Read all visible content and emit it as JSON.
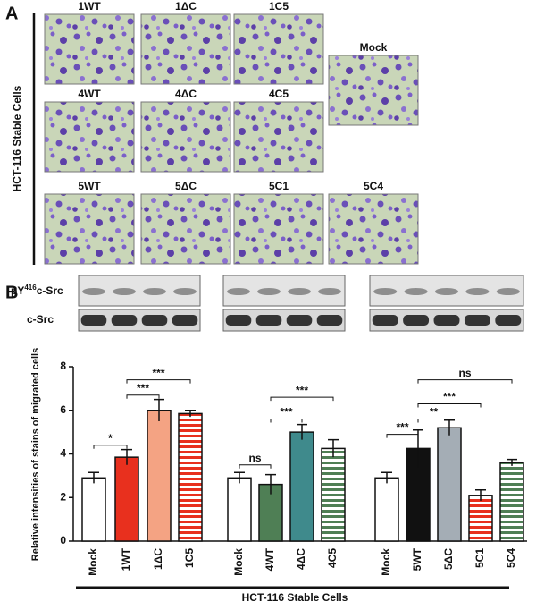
{
  "panel_a": {
    "label": "A",
    "side_label": "HCT-116 Stable Cells",
    "images": [
      "1WT",
      "1ΔC",
      "1C5",
      "Mock",
      "4WT",
      "4ΔC",
      "4C5",
      "5WT",
      "5ΔC",
      "5C1",
      "5C4"
    ]
  },
  "panel_b": {
    "label": "B",
    "blot_labels": [
      {
        "prefix": "pY",
        "sup": "416",
        "suffix": "c-Src"
      },
      "c-Src"
    ]
  },
  "chart_data": {
    "type": "bar",
    "y_label": "Relative intensities of stains of migrated cells",
    "x_label": "HCT-116 Stable Cells",
    "categories": [
      "Mock",
      "1WT",
      "1ΔC",
      "1C5",
      "Mock",
      "4WT",
      "4ΔC",
      "4C5",
      "Mock",
      "5WT",
      "5ΔC",
      "5C1",
      "5C4"
    ],
    "series": [
      {
        "values": [
          2.9,
          3.85,
          6.0,
          5.85,
          2.9,
          2.6,
          5.0,
          4.25,
          2.9,
          4.25,
          5.2,
          2.1,
          3.6
        ],
        "errors": [
          0.25,
          0.35,
          0.5,
          0.15,
          0.25,
          0.45,
          0.35,
          0.4,
          0.25,
          0.85,
          0.35,
          0.25,
          0.15
        ],
        "colors": [
          "#ffffff",
          "#e8301e",
          "#f4a383",
          "#e8301e",
          "#ffffff",
          "#4f7f55",
          "#3f8a8c",
          "#4f7f55",
          "#ffffff",
          "#111111",
          "#a4adb5",
          "#e8301e",
          "#4f7f55"
        ],
        "hatched": [
          false,
          false,
          false,
          true,
          false,
          false,
          false,
          true,
          false,
          false,
          false,
          true,
          true
        ]
      }
    ],
    "annotations": [
      "*",
      "***",
      "***",
      "ns",
      "***",
      "***",
      "***",
      "**",
      "***",
      "ns"
    ],
    "ylim": [
      0,
      8
    ],
    "yticks": [
      0,
      2,
      4,
      6,
      8
    ]
  }
}
